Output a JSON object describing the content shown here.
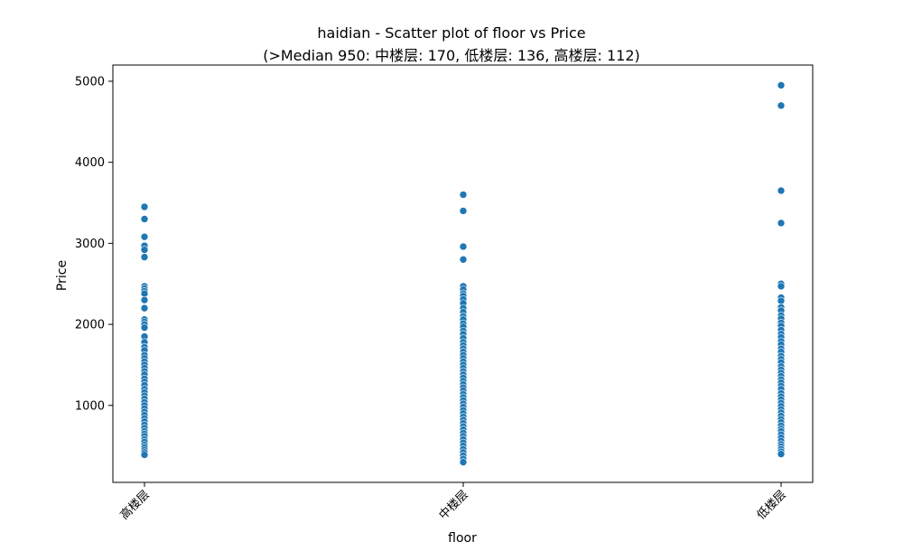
{
  "chart_data": {
    "type": "scatter",
    "title": "haidian - Scatter plot of floor vs Price",
    "subtitle": "(>Median 950: 中楼层: 170, 低楼层: 136, 高楼层: 112)",
    "xlabel": "floor",
    "ylabel": "Price",
    "categories": [
      "高楼层",
      "中楼层",
      "低楼层"
    ],
    "ylim": [
      50,
      5200
    ],
    "yticks": [
      1000,
      2000,
      3000,
      4000,
      5000
    ],
    "grid": false,
    "marker_color": "#1f77b4",
    "series": [
      {
        "category": "高楼层",
        "values": [
          3450,
          3300,
          3080,
          2970,
          2920,
          2830,
          2470,
          2440,
          2410,
          2380,
          2300,
          2200,
          2060,
          2030,
          2000,
          1960,
          1850,
          1780,
          1720,
          1680,
          1620,
          1580,
          1540,
          1500,
          1460,
          1420,
          1380,
          1330,
          1290,
          1250,
          1200,
          1160,
          1120,
          1080,
          1040,
          1000,
          960,
          920,
          880,
          840,
          800,
          760,
          720,
          680,
          650,
          620,
          580,
          550,
          510,
          480,
          450,
          420,
          390
        ]
      },
      {
        "category": "中楼层",
        "values": [
          3600,
          3400,
          2960,
          2800,
          2470,
          2430,
          2380,
          2350,
          2310,
          2260,
          2200,
          2150,
          2100,
          2060,
          2010,
          1970,
          1920,
          1880,
          1830,
          1780,
          1740,
          1700,
          1660,
          1620,
          1580,
          1540,
          1500,
          1460,
          1420,
          1380,
          1340,
          1300,
          1260,
          1220,
          1180,
          1140,
          1100,
          1060,
          1020,
          980,
          940,
          900,
          860,
          820,
          780,
          740,
          700,
          660,
          620,
          580,
          540,
          500,
          460,
          420,
          380,
          340,
          300
        ]
      },
      {
        "category": "低楼层",
        "values": [
          4950,
          4700,
          3650,
          3250,
          2500,
          2470,
          2330,
          2290,
          2210,
          2170,
          2110,
          2070,
          2020,
          1980,
          1930,
          1880,
          1840,
          1790,
          1750,
          1700,
          1660,
          1610,
          1570,
          1530,
          1480,
          1440,
          1400,
          1360,
          1320,
          1280,
          1240,
          1200,
          1150,
          1110,
          1070,
          1030,
          990,
          950,
          910,
          870,
          830,
          790,
          750,
          710,
          680,
          640,
          600,
          560,
          520,
          490,
          460,
          430,
          400
        ]
      }
    ]
  }
}
